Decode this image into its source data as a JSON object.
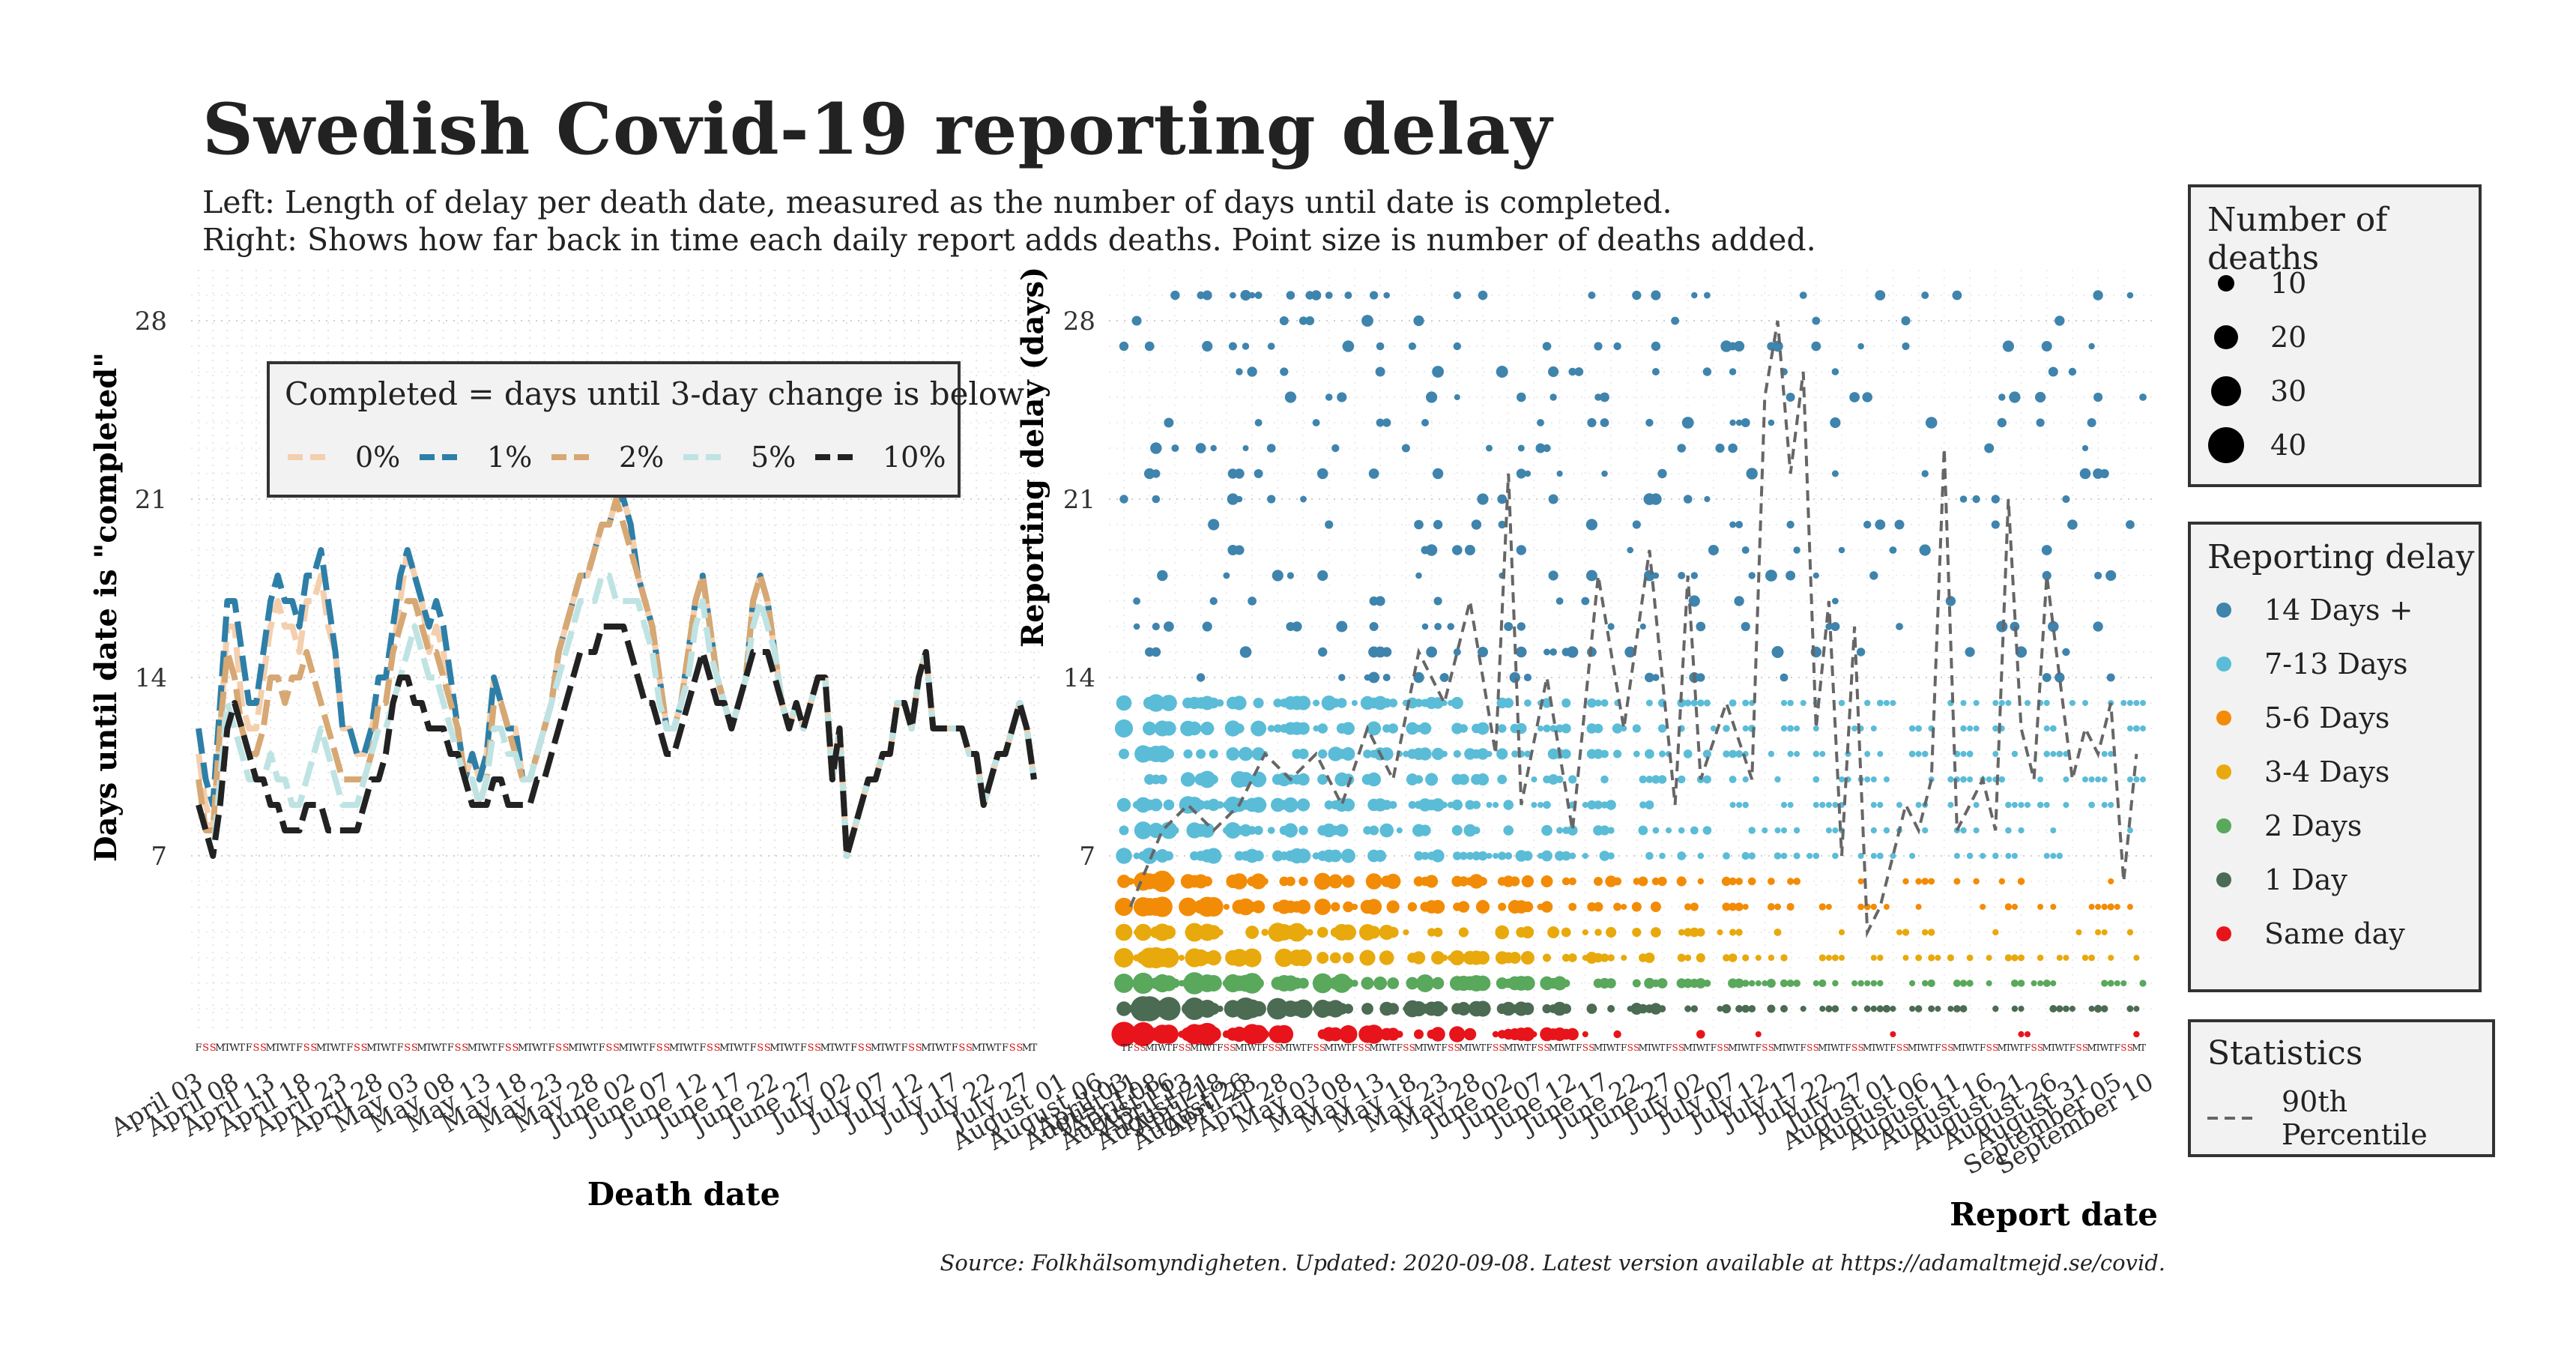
{
  "header": {
    "title": "Swedish Covid-19 reporting delay",
    "subtitle_1": "Left: Length of delay per death date, measured as the number of days until date is completed.",
    "subtitle_2": "Right: Shows how far back in time each daily report adds deaths. Point size is number of deaths added."
  },
  "source": "Source: Folkhälsomyndigheten. Updated: 2020-09-08. Latest version available at https://adamaltmejd.se/covid.",
  "weekday_letters": "FSSMTWT",
  "chart_data": [
    {
      "type": "line",
      "xlabel": "Death date",
      "ylabel": "Days until date is \"completed\"",
      "yticks": [
        7,
        14,
        21,
        28
      ],
      "ylim": [
        0,
        30
      ],
      "grid": true,
      "xtick_labels": [
        "April 03",
        "April 08",
        "April 13",
        "April 18",
        "April 23",
        "April 28",
        "May 03",
        "May 08",
        "May 13",
        "May 18",
        "May 23",
        "May 28",
        "June 02",
        "June 07",
        "June 12",
        "June 17",
        "June 22",
        "June 27",
        "July 02",
        "July 07",
        "July 12",
        "July 17",
        "July 22",
        "July 27",
        "August 01",
        "August 06",
        "August 11",
        "August 16",
        "August 21",
        "August 26"
      ],
      "x_start": "2020-04-03",
      "legend": {
        "title": "Completed = days until 3-day change is below:",
        "position": "inside-top-left"
      },
      "series": [
        {
          "name": "0%",
          "color": "#f4cfae",
          "dash": "dashed",
          "values": [
            11,
            9,
            8,
            12,
            16,
            16,
            13,
            12,
            12,
            14,
            16,
            17,
            16,
            16,
            15,
            17,
            17,
            18,
            16,
            15,
            12,
            12,
            11,
            11,
            12,
            13,
            13,
            15,
            17,
            19,
            18,
            17,
            15,
            16,
            15,
            13,
            12,
            10,
            11,
            10,
            11,
            14,
            13,
            12,
            12,
            10,
            10,
            11,
            12,
            13,
            15,
            16,
            17,
            18,
            18,
            19,
            20,
            20,
            21,
            21,
            20,
            18,
            17,
            16,
            14,
            12,
            12,
            13,
            15,
            17,
            18,
            16,
            14,
            13,
            12,
            13,
            14,
            17,
            18,
            17,
            15,
            13,
            12,
            13,
            12,
            13,
            14,
            14,
            10,
            12,
            7,
            8,
            9,
            10,
            10,
            11,
            11,
            13,
            13,
            12,
            14,
            15,
            12,
            12,
            12,
            12,
            12,
            11,
            11,
            9,
            10,
            11,
            11,
            12,
            13,
            12,
            10
          ]
        },
        {
          "name": "1%",
          "color": "#2e7fa8",
          "dash": "dashed",
          "values": [
            12,
            10,
            9,
            13,
            17,
            17,
            15,
            13,
            13,
            15,
            17,
            18,
            17,
            17,
            16,
            18,
            18,
            19,
            17,
            15,
            12,
            12,
            11,
            11,
            12,
            14,
            14,
            16,
            18,
            19,
            18,
            17,
            16,
            17,
            16,
            14,
            12,
            10,
            11,
            10,
            11,
            14,
            13,
            12,
            12,
            10,
            10,
            11,
            12,
            13,
            15,
            16,
            17,
            18,
            18,
            19,
            20,
            20,
            21,
            21,
            20,
            18,
            17,
            16,
            14,
            12,
            12,
            13,
            15,
            17,
            18,
            16,
            14,
            13,
            12,
            13,
            14,
            17,
            18,
            17,
            15,
            13,
            12,
            13,
            12,
            13,
            14,
            14,
            10,
            12,
            7,
            8,
            9,
            10,
            10,
            11,
            11,
            13,
            13,
            12,
            14,
            15,
            12,
            12,
            12,
            12,
            12,
            11,
            11,
            9,
            10,
            11,
            11,
            12,
            13,
            12,
            10
          ]
        },
        {
          "name": "2%",
          "color": "#d7a873",
          "dash": "dashed",
          "values": [
            10,
            8,
            8,
            12,
            15,
            14,
            12,
            11,
            11,
            12,
            14,
            14,
            13,
            14,
            14,
            15,
            14,
            13,
            12,
            11,
            10,
            10,
            10,
            10,
            11,
            13,
            13,
            15,
            16,
            17,
            17,
            16,
            15,
            15,
            14,
            13,
            12,
            10,
            10,
            9,
            10,
            13,
            13,
            12,
            11,
            10,
            10,
            11,
            12,
            13,
            15,
            16,
            17,
            18,
            18,
            19,
            20,
            20,
            21,
            20,
            19,
            18,
            17,
            16,
            14,
            12,
            12,
            13,
            15,
            17,
            18,
            16,
            14,
            13,
            12,
            13,
            14,
            17,
            18,
            17,
            15,
            13,
            12,
            13,
            12,
            13,
            14,
            14,
            10,
            12,
            7,
            8,
            9,
            10,
            10,
            11,
            11,
            13,
            13,
            12,
            14,
            15,
            12,
            12,
            12,
            12,
            12,
            11,
            11,
            9,
            10,
            11,
            11,
            12,
            13,
            12,
            10
          ]
        },
        {
          "name": "5%",
          "color": "#bfe3e3",
          "dash": "dashed",
          "values": [
            9,
            8,
            7,
            10,
            13,
            12,
            11,
            10,
            10,
            10,
            11,
            10,
            10,
            9,
            9,
            10,
            11,
            12,
            11,
            10,
            9,
            9,
            9,
            10,
            11,
            12,
            12,
            13,
            14,
            15,
            16,
            15,
            14,
            14,
            13,
            12,
            11,
            10,
            10,
            9,
            10,
            12,
            12,
            11,
            11,
            10,
            10,
            11,
            12,
            13,
            14,
            15,
            16,
            17,
            17,
            17,
            18,
            18,
            17,
            17,
            17,
            17,
            16,
            15,
            13,
            12,
            12,
            13,
            14,
            16,
            17,
            15,
            14,
            13,
            12,
            13,
            14,
            16,
            17,
            16,
            15,
            13,
            12,
            13,
            12,
            13,
            14,
            14,
            10,
            12,
            7,
            8,
            9,
            10,
            10,
            11,
            11,
            13,
            13,
            12,
            14,
            15,
            12,
            12,
            12,
            12,
            12,
            11,
            11,
            9,
            10,
            11,
            11,
            12,
            13,
            12,
            10
          ]
        },
        {
          "name": "10%",
          "color": "#222222",
          "dash": "dashed",
          "values": [
            9,
            8,
            7,
            9,
            12,
            13,
            12,
            11,
            10,
            10,
            9,
            9,
            8,
            8,
            8,
            9,
            9,
            9,
            8,
            8,
            8,
            8,
            8,
            9,
            10,
            10,
            11,
            13,
            14,
            14,
            13,
            13,
            12,
            12,
            12,
            11,
            11,
            10,
            9,
            9,
            9,
            10,
            10,
            9,
            9,
            9,
            9,
            10,
            10,
            11,
            12,
            13,
            14,
            15,
            15,
            15,
            16,
            16,
            16,
            16,
            15,
            14,
            13,
            13,
            12,
            11,
            11,
            12,
            13,
            14,
            15,
            14,
            13,
            13,
            12,
            13,
            14,
            15,
            15,
            15,
            14,
            13,
            12,
            13,
            12,
            13,
            14,
            14,
            10,
            12,
            7,
            8,
            9,
            10,
            10,
            11,
            11,
            13,
            13,
            12,
            14,
            15,
            12,
            12,
            12,
            12,
            12,
            11,
            11,
            9,
            10,
            11,
            11,
            12,
            13,
            12,
            10
          ]
        }
      ]
    },
    {
      "type": "scatter",
      "xlabel": "Report date",
      "ylabel": "Reporting delay (days)",
      "yticks": [
        7,
        14,
        21,
        28
      ],
      "ylim": [
        0,
        30
      ],
      "grid": true,
      "xtick_labels": [
        "April 03",
        "April 08",
        "April 13",
        "April 18",
        "April 23",
        "April 28",
        "May 03",
        "May 08",
        "May 13",
        "May 18",
        "May 23",
        "May 28",
        "June 02",
        "June 07",
        "June 12",
        "June 17",
        "June 22",
        "June 27",
        "July 02",
        "July 07",
        "July 12",
        "July 17",
        "July 22",
        "July 27",
        "August 01",
        "August 06",
        "August 11",
        "August 16",
        "August 21",
        "August 26",
        "August 31",
        "September 05",
        "September 10"
      ],
      "x_start": "2020-04-02",
      "n_report_days": 160,
      "size_legend": {
        "title": "Number of deaths",
        "values": [
          10,
          20,
          30,
          40
        ]
      },
      "color_legend": {
        "title": "Reporting delay",
        "categories": [
          {
            "label": "14 Days +",
            "color": "#3f84ad"
          },
          {
            "label": "7-13 Days",
            "color": "#5bbcd7"
          },
          {
            "label": "5-6 Days",
            "color": "#f28c06"
          },
          {
            "label": "3-4 Days",
            "color": "#e8a90c"
          },
          {
            "label": "2 Days",
            "color": "#59a85c"
          },
          {
            "label": "1 Day",
            "color": "#4b6b52"
          },
          {
            "label": "Same day",
            "color": "#e8141b"
          }
        ]
      },
      "statistics_legend": {
        "title": "Statistics",
        "label": "90th Percentile",
        "color": "#666666",
        "dash": "dashed"
      },
      "percentile_90": [
        {
          "x": 1,
          "y": 5
        },
        {
          "x": 6,
          "y": 8
        },
        {
          "x": 10,
          "y": 9
        },
        {
          "x": 14,
          "y": 8
        },
        {
          "x": 18,
          "y": 9
        },
        {
          "x": 22,
          "y": 11
        },
        {
          "x": 26,
          "y": 10
        },
        {
          "x": 30,
          "y": 11
        },
        {
          "x": 34,
          "y": 9
        },
        {
          "x": 38,
          "y": 12
        },
        {
          "x": 42,
          "y": 10
        },
        {
          "x": 46,
          "y": 15
        },
        {
          "x": 50,
          "y": 13
        },
        {
          "x": 54,
          "y": 17
        },
        {
          "x": 58,
          "y": 11
        },
        {
          "x": 60,
          "y": 22
        },
        {
          "x": 62,
          "y": 9
        },
        {
          "x": 66,
          "y": 14
        },
        {
          "x": 70,
          "y": 8
        },
        {
          "x": 74,
          "y": 18
        },
        {
          "x": 78,
          "y": 12
        },
        {
          "x": 82,
          "y": 19
        },
        {
          "x": 86,
          "y": 9
        },
        {
          "x": 88,
          "y": 18
        },
        {
          "x": 90,
          "y": 10
        },
        {
          "x": 94,
          "y": 13
        },
        {
          "x": 98,
          "y": 10
        },
        {
          "x": 100,
          "y": 25
        },
        {
          "x": 102,
          "y": 28
        },
        {
          "x": 104,
          "y": 22
        },
        {
          "x": 106,
          "y": 26
        },
        {
          "x": 108,
          "y": 12
        },
        {
          "x": 110,
          "y": 17
        },
        {
          "x": 112,
          "y": 7
        },
        {
          "x": 114,
          "y": 16
        },
        {
          "x": 116,
          "y": 4
        },
        {
          "x": 118,
          "y": 5
        },
        {
          "x": 122,
          "y": 9
        },
        {
          "x": 124,
          "y": 8
        },
        {
          "x": 126,
          "y": 10
        },
        {
          "x": 128,
          "y": 23
        },
        {
          "x": 130,
          "y": 8
        },
        {
          "x": 134,
          "y": 10
        },
        {
          "x": 136,
          "y": 8
        },
        {
          "x": 138,
          "y": 21
        },
        {
          "x": 140,
          "y": 12
        },
        {
          "x": 142,
          "y": 10
        },
        {
          "x": 144,
          "y": 18
        },
        {
          "x": 146,
          "y": 14
        },
        {
          "x": 148,
          "y": 10
        },
        {
          "x": 150,
          "y": 12
        },
        {
          "x": 152,
          "y": 11
        },
        {
          "x": 154,
          "y": 13
        },
        {
          "x": 156,
          "y": 6
        },
        {
          "x": 158,
          "y": 11
        }
      ]
    }
  ]
}
